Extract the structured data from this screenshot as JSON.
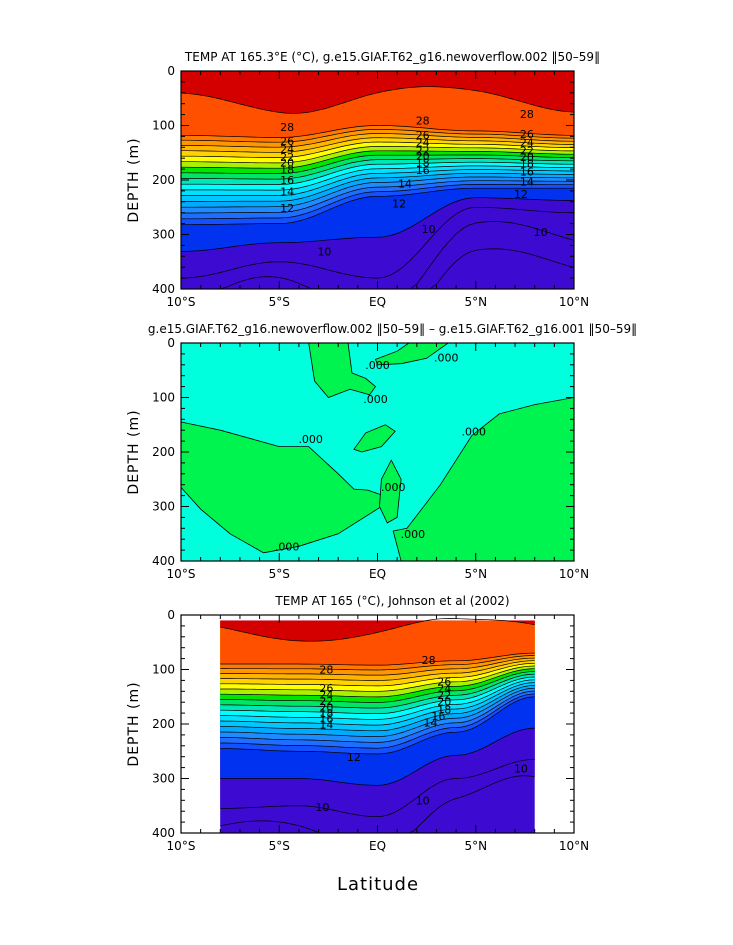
{
  "figure": {
    "xlabel": "Latitude"
  },
  "chart_data": [
    {
      "type": "contour",
      "title": "TEMP AT 165.3°E (°C), g.e15.GIAF.T62_g16.newoverflow.002 ‖50–59‖",
      "ylabel": "DEPTH (m)",
      "xlabel": "",
      "xlim": [
        -10,
        10
      ],
      "ylim": [
        400,
        0
      ],
      "x_ticks": [
        -10,
        -5,
        0,
        5,
        10
      ],
      "x_tick_labels": [
        "10°S",
        "5°S",
        "EQ",
        "5°N",
        "10°N"
      ],
      "y_ticks": [
        0,
        100,
        200,
        300,
        400
      ],
      "y_tick_labels": [
        "0",
        "100",
        "200",
        "300",
        "400"
      ],
      "data_extent_x": [
        -10,
        10
      ],
      "levels": [
        29,
        28,
        27,
        26,
        25,
        24,
        23,
        22,
        21,
        20,
        19,
        18,
        17,
        16,
        15,
        14,
        13,
        12,
        11,
        10,
        9,
        8
      ],
      "thermocline": [
        {
          "x": -10,
          "z28": 118,
          "z12": 282,
          "z10": 380
        },
        {
          "x": -5,
          "z28": 122,
          "z12": 280,
          "z10": 350
        },
        {
          "x": 0,
          "z28": 100,
          "z12": 230,
          "z10": 380
        },
        {
          "x": 5,
          "z28": 110,
          "z12": 215,
          "z10": 250
        },
        {
          "x": 10,
          "z28": 118,
          "z12": 215,
          "z10": 260
        }
      ],
      "contour_labels": [
        {
          "text": "28",
          "x": -4.6,
          "z": 103
        },
        {
          "text": "26",
          "x": -4.6,
          "z": 128
        },
        {
          "text": "24",
          "x": -4.6,
          "z": 143
        },
        {
          "text": "22",
          "x": -4.6,
          "z": 158
        },
        {
          "text": "20",
          "x": -4.6,
          "z": 168
        },
        {
          "text": "18",
          "x": -4.6,
          "z": 181
        },
        {
          "text": "16",
          "x": -4.6,
          "z": 200
        },
        {
          "text": "14",
          "x": -4.6,
          "z": 221
        },
        {
          "text": "12",
          "x": -4.6,
          "z": 251
        },
        {
          "text": "10",
          "x": -2.7,
          "z": 331
        },
        {
          "text": "28",
          "x": 2.3,
          "z": 91
        },
        {
          "text": "26",
          "x": 2.3,
          "z": 117
        },
        {
          "text": "24",
          "x": 2.3,
          "z": 131
        },
        {
          "text": "22",
          "x": 2.3,
          "z": 146
        },
        {
          "text": "20",
          "x": 2.3,
          "z": 156
        },
        {
          "text": "18",
          "x": 2.3,
          "z": 168
        },
        {
          "text": "16",
          "x": 2.3,
          "z": 182
        },
        {
          "text": "14",
          "x": 1.4,
          "z": 206
        },
        {
          "text": "12",
          "x": 1.1,
          "z": 243
        },
        {
          "text": "10",
          "x": 2.6,
          "z": 290
        },
        {
          "text": "28",
          "x": 7.6,
          "z": 79
        },
        {
          "text": "26",
          "x": 7.6,
          "z": 116
        },
        {
          "text": "24",
          "x": 7.6,
          "z": 131
        },
        {
          "text": "22",
          "x": 7.6,
          "z": 146
        },
        {
          "text": "20",
          "x": 7.6,
          "z": 158
        },
        {
          "text": "18",
          "x": 7.6,
          "z": 170
        },
        {
          "text": "16",
          "x": 7.6,
          "z": 184
        },
        {
          "text": "14",
          "x": 7.6,
          "z": 203
        },
        {
          "text": "12",
          "x": 7.3,
          "z": 226
        },
        {
          "text": "10",
          "x": 8.3,
          "z": 295
        }
      ]
    },
    {
      "type": "contour",
      "title": "g.e15.GIAF.T62_g16.newoverflow.002 ‖50–59‖ – g.e15.GIAF.T62_g16.001 ‖50–59‖",
      "ylabel": "DEPTH (m)",
      "xlabel": "",
      "xlim": [
        -10,
        10
      ],
      "ylim": [
        400,
        0
      ],
      "x_ticks": [
        -10,
        -5,
        0,
        5,
        10
      ],
      "x_tick_labels": [
        "10°S",
        "5°S",
        "EQ",
        "5°N",
        "10°N"
      ],
      "y_ticks": [
        0,
        100,
        200,
        300,
        400
      ],
      "y_tick_labels": [
        "0",
        "100",
        "200",
        "300",
        "400"
      ],
      "data_extent_x": [
        -10,
        10
      ],
      "levels": [
        0
      ],
      "fill_colors": {
        "negative": "#00ffdc",
        "positive": "#00f450"
      },
      "contour_labels": [
        {
          "text": ".000",
          "x": -4.6,
          "z": 373
        },
        {
          "text": ".000",
          "x": -3.4,
          "z": 176
        },
        {
          "text": ".000",
          "x": 0.0,
          "z": 40
        },
        {
          "text": ".000",
          "x": -0.1,
          "z": 103
        },
        {
          "text": ".000",
          "x": 0.8,
          "z": 264
        },
        {
          "text": ".000",
          "x": 1.8,
          "z": 350
        },
        {
          "text": ".000",
          "x": 3.5,
          "z": 27
        },
        {
          "text": ".000",
          "x": 4.9,
          "z": 162
        }
      ]
    },
    {
      "type": "contour",
      "title": "TEMP AT 165 (°C), Johnson et al (2002)",
      "ylabel": "DEPTH (m)",
      "xlabel": "Latitude",
      "xlim": [
        -10,
        10
      ],
      "ylim": [
        400,
        0
      ],
      "x_ticks": [
        -10,
        -5,
        0,
        5,
        10
      ],
      "x_tick_labels": [
        "10°S",
        "5°S",
        "EQ",
        "5°N",
        "10°N"
      ],
      "y_ticks": [
        0,
        100,
        200,
        300,
        400
      ],
      "y_tick_labels": [
        "0",
        "100",
        "200",
        "300",
        "400"
      ],
      "data_extent_x": [
        -8,
        8
      ],
      "levels": [
        29,
        28,
        27,
        26,
        25,
        24,
        23,
        22,
        21,
        20,
        19,
        18,
        17,
        16,
        15,
        14,
        13,
        12,
        11,
        10,
        9
      ],
      "contour_labels": [
        {
          "text": "28",
          "x": -2.6,
          "z": 100
        },
        {
          "text": "26",
          "x": -2.6,
          "z": 134
        },
        {
          "text": "24",
          "x": -2.6,
          "z": 146
        },
        {
          "text": "22",
          "x": -2.6,
          "z": 158
        },
        {
          "text": "20",
          "x": -2.6,
          "z": 170
        },
        {
          "text": "18",
          "x": -2.6,
          "z": 180
        },
        {
          "text": "16",
          "x": -2.6,
          "z": 190
        },
        {
          "text": "14",
          "x": -2.6,
          "z": 201
        },
        {
          "text": "12",
          "x": -1.2,
          "z": 261
        },
        {
          "text": "10",
          "x": -2.8,
          "z": 352
        },
        {
          "text": "28",
          "x": 2.6,
          "z": 83
        },
        {
          "text": "26",
          "x": 3.4,
          "z": 122
        },
        {
          "text": "24",
          "x": 3.4,
          "z": 135
        },
        {
          "text": "22",
          "x": 3.4,
          "z": 147
        },
        {
          "text": "20",
          "x": 3.4,
          "z": 159
        },
        {
          "text": "18",
          "x": 3.4,
          "z": 173
        },
        {
          "text": "16",
          "x": 3.1,
          "z": 185
        },
        {
          "text": "14",
          "x": 2.7,
          "z": 197
        },
        {
          "text": "10",
          "x": 2.3,
          "z": 340
        },
        {
          "text": "10",
          "x": 7.3,
          "z": 282
        }
      ]
    }
  ]
}
